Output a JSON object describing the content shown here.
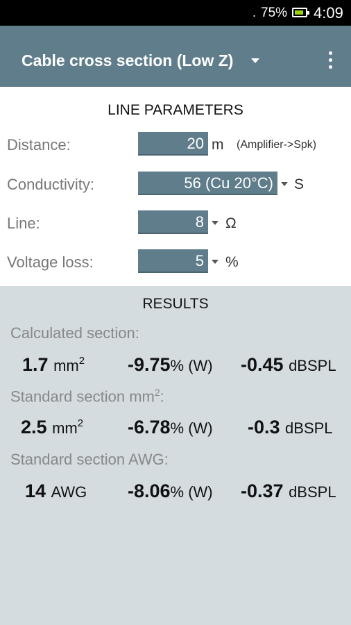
{
  "status": {
    "signal": ".",
    "battery": "75%",
    "time": "4:09"
  },
  "appbar": {
    "title": "Cable cross section (Low Z)"
  },
  "params": {
    "header": "LINE PARAMETERS",
    "distance": {
      "label": "Distance:",
      "value": "20",
      "unit": "m",
      "note": "(Amplifier->Spk)"
    },
    "conductivity": {
      "label": "Conductivity:",
      "value": "56 (Cu 20°C)",
      "unit": "S"
    },
    "line": {
      "label": "Line:",
      "value": "8",
      "unit": "Ω"
    },
    "voltage_loss": {
      "label": "Voltage loss:",
      "value": "5",
      "unit": "%"
    }
  },
  "results": {
    "header": "RESULTS",
    "calculated": {
      "label": "Calculated section:",
      "section": "1.7",
      "section_unit": "mm",
      "loss": "-9.75",
      "loss_unit": "% (W)",
      "db": "-0.45",
      "db_unit": "dBSPL"
    },
    "standard_mm": {
      "label": "Standard section mm",
      "section": "2.5",
      "section_unit": "mm",
      "loss": "-6.78",
      "loss_unit": "% (W)",
      "db": "-0.3",
      "db_unit": "dBSPL"
    },
    "standard_awg": {
      "label": "Standard section AWG:",
      "section": "14",
      "section_unit": "AWG",
      "loss": "-8.06",
      "loss_unit": "% (W)",
      "db": "-0.37",
      "db_unit": "dBSPL"
    }
  }
}
